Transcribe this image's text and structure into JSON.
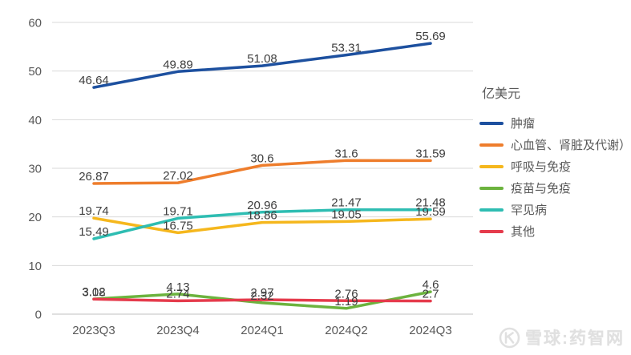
{
  "chart_data": {
    "type": "line",
    "title": "",
    "unit_label": "亿美元",
    "categories": [
      "2023Q3",
      "2023Q4",
      "2024Q1",
      "2024Q2",
      "2024Q3"
    ],
    "series": [
      {
        "name": "肿瘤",
        "color": "#1d509f",
        "values": [
          46.64,
          49.89,
          51.08,
          53.31,
          55.69
        ]
      },
      {
        "name": "心血管、肾脏及代谢）",
        "color": "#ee7d2c",
        "values": [
          26.87,
          27.02,
          30.6,
          31.6,
          31.59
        ]
      },
      {
        "name": "呼吸与免疫",
        "color": "#f5b71d",
        "values": [
          19.74,
          16.75,
          18.86,
          19.05,
          19.59
        ]
      },
      {
        "name": "疫苗与免疫",
        "color": "#6cb33e",
        "values": [
          3.12,
          4.13,
          2.32,
          1.19,
          4.6
        ]
      },
      {
        "name": "罕见病",
        "color": "#2ebdb2",
        "values": [
          15.49,
          19.71,
          20.96,
          21.47,
          21.48
        ]
      },
      {
        "name": "其他",
        "color": "#e53b4c",
        "values": [
          3.08,
          2.74,
          2.97,
          2.76,
          2.7
        ]
      }
    ],
    "y_ticks": [
      0,
      10,
      20,
      30,
      40,
      50,
      60
    ],
    "ylim": [
      0,
      60
    ],
    "grid": true,
    "legend_position": "right",
    "colors": {
      "gridline": "#d9d9d9",
      "axis_line": "#c2c2c2",
      "tick_text": "#595959",
      "data_label_text": "#3d3d3d"
    }
  },
  "watermark": {
    "logo": "xueqiu-logo",
    "text": "雪球:药智网"
  }
}
